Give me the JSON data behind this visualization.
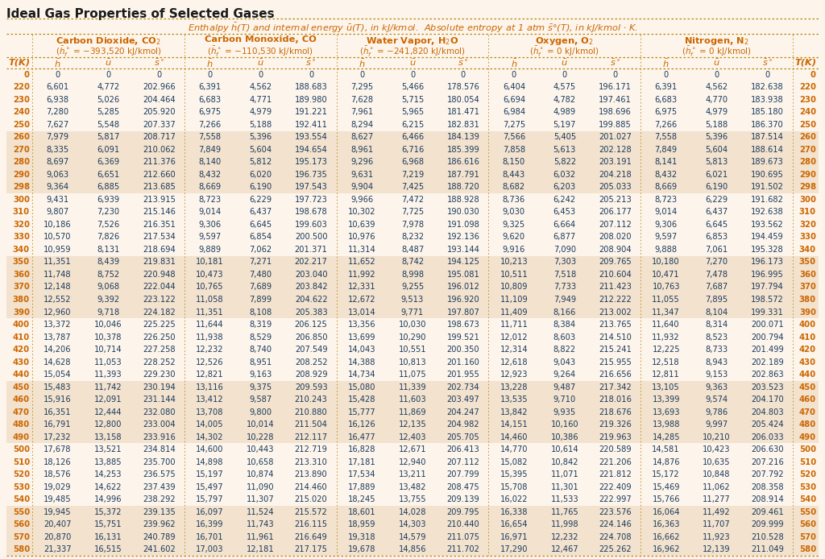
{
  "title": "Ideal Gas Properties of Selected Gases",
  "bg_color": "#FDF5EC",
  "header_color": "#CC6600",
  "text_color": "#1a3a5c",
  "gases": [
    {
      "name": "Carbon Dioxide, CO₂",
      "hf": "(ħ°f = −393,520 kJ/kmol)"
    },
    {
      "name": "Carbon Monoxide, CO",
      "hf": "(ħ°f = −110,530 kJ/kmol)"
    },
    {
      "name": "Water Vapor, H₂O",
      "hf": "(ħ°f = −241,820 kJ/kmol)"
    },
    {
      "name": "Oxygen, O₂",
      "hf": "(ħ°f = 0 kJ/kmol)"
    },
    {
      "name": "Nitrogen, N₂",
      "hf": "(ħ°f = 0 kJ/kmol)"
    }
  ],
  "rows": [
    [
      0,
      0,
      0,
      0,
      0,
      0,
      0,
      0,
      0,
      0,
      0,
      0,
      0,
      0,
      0,
      0,
      0
    ],
    [
      220,
      6601,
      4772,
      202.966,
      6391,
      4562,
      188.683,
      7295,
      5466,
      178.576,
      6404,
      4575,
      196.171,
      6391,
      4562,
      182.638,
      220
    ],
    [
      230,
      6938,
      5026,
      204.464,
      6683,
      4771,
      189.98,
      7628,
      5715,
      180.054,
      6694,
      4782,
      197.461,
      6683,
      4770,
      183.938,
      230
    ],
    [
      240,
      7280,
      5285,
      205.92,
      6975,
      4979,
      191.221,
      7961,
      5965,
      181.471,
      6984,
      4989,
      198.696,
      6975,
      4979,
      185.18,
      240
    ],
    [
      250,
      7627,
      5548,
      207.337,
      7266,
      5188,
      192.411,
      8294,
      6215,
      182.831,
      7275,
      5197,
      199.885,
      7266,
      5188,
      186.37,
      250
    ],
    [
      260,
      7979,
      5817,
      208.717,
      7558,
      5396,
      193.554,
      8627,
      6466,
      184.139,
      7566,
      5405,
      201.027,
      7558,
      5396,
      187.514,
      260
    ],
    [
      270,
      8335,
      6091,
      210.062,
      7849,
      5604,
      194.654,
      8961,
      6716,
      185.399,
      7858,
      5613,
      202.128,
      7849,
      5604,
      188.614,
      270
    ],
    [
      280,
      8697,
      6369,
      211.376,
      8140,
      5812,
      195.173,
      9296,
      6968,
      186.616,
      8150,
      5822,
      203.191,
      8141,
      5813,
      189.673,
      280
    ],
    [
      290,
      9063,
      6651,
      212.66,
      8432,
      6020,
      196.735,
      9631,
      7219,
      187.791,
      8443,
      6032,
      204.218,
      8432,
      6021,
      190.695,
      290
    ],
    [
      298,
      9364,
      6885,
      213.685,
      8669,
      6190,
      197.543,
      9904,
      7425,
      188.72,
      8682,
      6203,
      205.033,
      8669,
      6190,
      191.502,
      298
    ],
    [
      300,
      9431,
      6939,
      213.915,
      8723,
      6229,
      197.723,
      9966,
      7472,
      188.928,
      8736,
      6242,
      205.213,
      8723,
      6229,
      191.682,
      300
    ],
    [
      310,
      9807,
      7230,
      215.146,
      9014,
      6437,
      198.678,
      10302,
      7725,
      190.03,
      9030,
      6453,
      206.177,
      9014,
      6437,
      192.638,
      310
    ],
    [
      320,
      10186,
      7526,
      216.351,
      9306,
      6645,
      199.603,
      10639,
      7978,
      191.098,
      9325,
      6664,
      207.112,
      9306,
      6645,
      193.562,
      320
    ],
    [
      330,
      10570,
      7826,
      217.534,
      9597,
      6854,
      200.5,
      10976,
      8232,
      192.136,
      9620,
      6877,
      208.02,
      9597,
      6853,
      194.459,
      330
    ],
    [
      340,
      10959,
      8131,
      218.694,
      9889,
      7062,
      201.371,
      11314,
      8487,
      193.144,
      9916,
      7090,
      208.904,
      9888,
      7061,
      195.328,
      340
    ],
    [
      350,
      11351,
      8439,
      219.831,
      10181,
      7271,
      202.217,
      11652,
      8742,
      194.125,
      10213,
      7303,
      209.765,
      10180,
      7270,
      196.173,
      350
    ],
    [
      360,
      11748,
      8752,
      220.948,
      10473,
      7480,
      203.04,
      11992,
      8998,
      195.081,
      10511,
      7518,
      210.604,
      10471,
      7478,
      196.995,
      360
    ],
    [
      370,
      12148,
      9068,
      222.044,
      10765,
      7689,
      203.842,
      12331,
      9255,
      196.012,
      10809,
      7733,
      211.423,
      10763,
      7687,
      197.794,
      370
    ],
    [
      380,
      12552,
      9392,
      223.122,
      11058,
      7899,
      204.622,
      12672,
      9513,
      196.92,
      11109,
      7949,
      212.222,
      11055,
      7895,
      198.572,
      380
    ],
    [
      390,
      12960,
      9718,
      224.182,
      11351,
      8108,
      205.383,
      13014,
      9771,
      197.807,
      11409,
      8166,
      213.002,
      11347,
      8104,
      199.331,
      390
    ],
    [
      400,
      13372,
      10046,
      225.225,
      11644,
      8319,
      206.125,
      13356,
      10030,
      198.673,
      11711,
      8384,
      213.765,
      11640,
      8314,
      200.071,
      400
    ],
    [
      410,
      13787,
      10378,
      226.25,
      11938,
      8529,
      206.85,
      13699,
      10290,
      199.521,
      12012,
      8603,
      214.51,
      11932,
      8523,
      200.794,
      410
    ],
    [
      420,
      14206,
      10714,
      227.258,
      12232,
      8740,
      207.549,
      14043,
      10551,
      200.35,
      12314,
      8822,
      215.241,
      12225,
      8733,
      201.499,
      420
    ],
    [
      430,
      14628,
      11053,
      228.252,
      12526,
      8951,
      208.252,
      14388,
      10813,
      201.16,
      12618,
      9043,
      215.955,
      12518,
      8943,
      202.189,
      430
    ],
    [
      440,
      15054,
      11393,
      229.23,
      12821,
      9163,
      208.929,
      14734,
      11075,
      201.955,
      12923,
      9264,
      216.656,
      12811,
      9153,
      202.863,
      440
    ],
    [
      450,
      15483,
      11742,
      230.194,
      13116,
      9375,
      209.593,
      15080,
      11339,
      202.734,
      13228,
      9487,
      217.342,
      13105,
      9363,
      203.523,
      450
    ],
    [
      460,
      15916,
      12091,
      231.144,
      13412,
      9587,
      210.243,
      15428,
      11603,
      203.497,
      13535,
      9710,
      218.016,
      13399,
      9574,
      204.17,
      460
    ],
    [
      470,
      16351,
      12444,
      232.08,
      13708,
      9800,
      210.88,
      15777,
      11869,
      204.247,
      13842,
      9935,
      218.676,
      13693,
      9786,
      204.803,
      470
    ],
    [
      480,
      16791,
      12800,
      233.004,
      14005,
      10014,
      211.504,
      16126,
      12135,
      204.982,
      14151,
      10160,
      219.326,
      13988,
      9997,
      205.424,
      480
    ],
    [
      490,
      17232,
      13158,
      233.916,
      14302,
      10228,
      212.117,
      16477,
      12403,
      205.705,
      14460,
      10386,
      219.963,
      14285,
      10210,
      206.033,
      490
    ],
    [
      500,
      17678,
      13521,
      234.814,
      14600,
      10443,
      212.719,
      16828,
      12671,
      206.413,
      14770,
      10614,
      220.589,
      14581,
      10423,
      206.63,
      500
    ],
    [
      510,
      18126,
      13885,
      235.7,
      14898,
      10658,
      213.31,
      17181,
      12940,
      207.112,
      15082,
      10842,
      221.206,
      14876,
      10635,
      207.216,
      510
    ],
    [
      520,
      18576,
      14253,
      236.575,
      15197,
      10874,
      213.89,
      17534,
      13211,
      207.799,
      15395,
      11071,
      221.812,
      15172,
      10848,
      207.792,
      520
    ],
    [
      530,
      19029,
      14622,
      237.439,
      15497,
      11090,
      214.46,
      17889,
      13482,
      208.475,
      15708,
      11301,
      222.409,
      15469,
      11062,
      208.358,
      530
    ],
    [
      540,
      19485,
      14996,
      238.292,
      15797,
      11307,
      215.02,
      18245,
      13755,
      209.139,
      16022,
      11533,
      222.997,
      15766,
      11277,
      208.914,
      540
    ],
    [
      550,
      19945,
      15372,
      239.135,
      16097,
      11524,
      215.572,
      18601,
      14028,
      209.795,
      16338,
      11765,
      223.576,
      16064,
      11492,
      209.461,
      550
    ],
    [
      560,
      20407,
      15751,
      239.962,
      16399,
      11743,
      216.115,
      18959,
      14303,
      210.44,
      16654,
      11998,
      224.146,
      16363,
      11707,
      209.999,
      560
    ],
    [
      570,
      20870,
      16131,
      240.789,
      16701,
      11961,
      216.649,
      19318,
      14579,
      211.075,
      16971,
      12232,
      224.708,
      16662,
      11923,
      210.528,
      570
    ],
    [
      580,
      21337,
      16515,
      241.602,
      17003,
      12181,
      217.175,
      19678,
      14856,
      211.702,
      17290,
      12467,
      225.262,
      16962,
      12139,
      211.049,
      580
    ]
  ]
}
